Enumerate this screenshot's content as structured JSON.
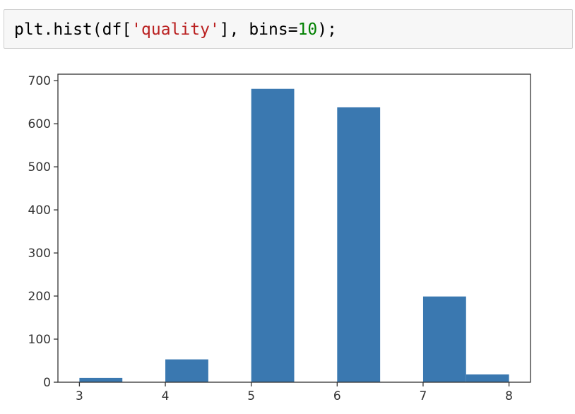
{
  "cell": {
    "code_tokens": [
      {
        "text": "plt.hist(df[",
        "kind": "plain"
      },
      {
        "text": "'quality'",
        "kind": "str"
      },
      {
        "text": "], bins=",
        "kind": "plain"
      },
      {
        "text": "10",
        "kind": "num"
      },
      {
        "text": ");",
        "kind": "plain"
      }
    ]
  },
  "chart_data": {
    "type": "bar",
    "subtype": "histogram",
    "bin_edges": [
      3.0,
      3.5,
      4.0,
      4.5,
      5.0,
      5.5,
      6.0,
      6.5,
      7.0,
      7.5,
      8.0
    ],
    "values": [
      10,
      0,
      53,
      0,
      681,
      0,
      638,
      0,
      199,
      18
    ],
    "title": "",
    "xlabel": "",
    "ylabel": "",
    "xlim": [
      2.75,
      8.25
    ],
    "ylim": [
      0,
      715
    ],
    "x_ticks": [
      3,
      4,
      5,
      6,
      7,
      8
    ],
    "y_ticks": [
      0,
      100,
      200,
      300,
      400,
      500,
      600,
      700
    ],
    "grid": false,
    "legend": "none",
    "colors": {
      "bar": "#3a78b0",
      "axis": "#333333",
      "tick_label": "#333333"
    }
  }
}
